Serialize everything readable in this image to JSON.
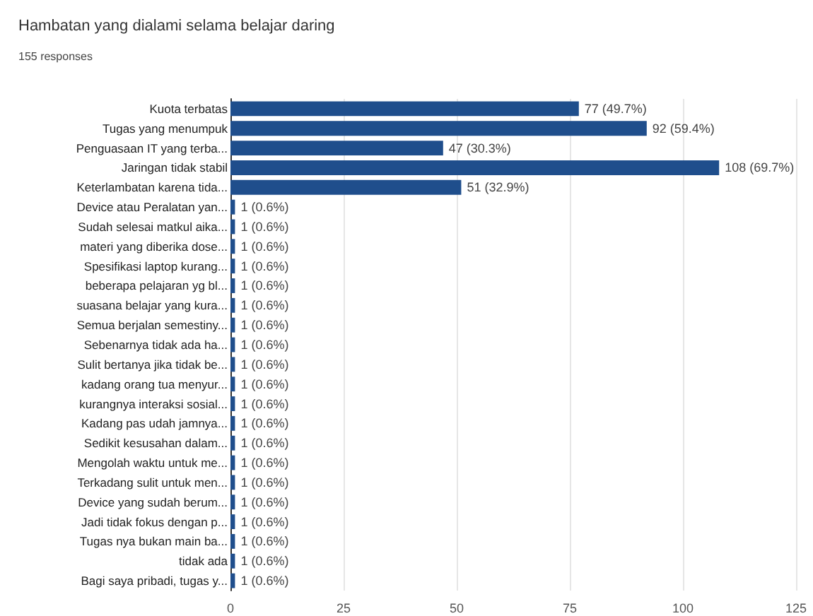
{
  "chart_data": {
    "type": "bar",
    "orientation": "horizontal",
    "title": "Hambatan yang dialami selama belajar daring",
    "subtitle": "155 responses",
    "categories": [
      "Kuota terbatas",
      "Tugas yang menumpuk",
      "Penguasaan IT yang terba...",
      "Jaringan tidak stabil",
      "Keterlambatan karena tida...",
      "Device atau Peralatan yan...",
      "Sudah selesai matkul aika...",
      "materi yang diberika dose...",
      "Spesifikasi laptop kurang...",
      "beberapa pelajaran yg bl...",
      "suasana belajar yang kura...",
      "Semua berjalan semestiny...",
      "Sebenarnya tidak ada ha...",
      "Sulit bertanya jika tidak be...",
      "kadang orang tua menyur...",
      "kurangnya interaksi sosial...",
      "Kadang pas udah jamnya...",
      "Sedikit kesusahan dalam...",
      "Mengolah waktu untuk me...",
      "Terkadang sulit untuk men...",
      "Device yang sudah berum...",
      "Jadi tidak fokus dengan p...",
      "Tugas nya bukan main ba...",
      "tidak ada",
      "Bagi saya pribadi, tugas y..."
    ],
    "values": [
      77,
      92,
      47,
      108,
      51,
      1,
      1,
      1,
      1,
      1,
      1,
      1,
      1,
      1,
      1,
      1,
      1,
      1,
      1,
      1,
      1,
      1,
      1,
      1,
      1
    ],
    "value_labels": [
      "77 (49.7%)",
      "92 (59.4%)",
      "47 (30.3%)",
      "108 (69.7%)",
      "51 (32.9%)",
      "1 (0.6%)",
      "1 (0.6%)",
      "1 (0.6%)",
      "1 (0.6%)",
      "1 (0.6%)",
      "1 (0.6%)",
      "1 (0.6%)",
      "1 (0.6%)",
      "1 (0.6%)",
      "1 (0.6%)",
      "1 (0.6%)",
      "1 (0.6%)",
      "1 (0.6%)",
      "1 (0.6%)",
      "1 (0.6%)",
      "1 (0.6%)",
      "1 (0.6%)",
      "1 (0.6%)",
      "1 (0.6%)",
      "1 (0.6%)"
    ],
    "color": "#1f4e8c",
    "xlim": [
      0,
      125
    ],
    "xticks": [
      0,
      25,
      50,
      75,
      100,
      125
    ],
    "grid": "x"
  }
}
